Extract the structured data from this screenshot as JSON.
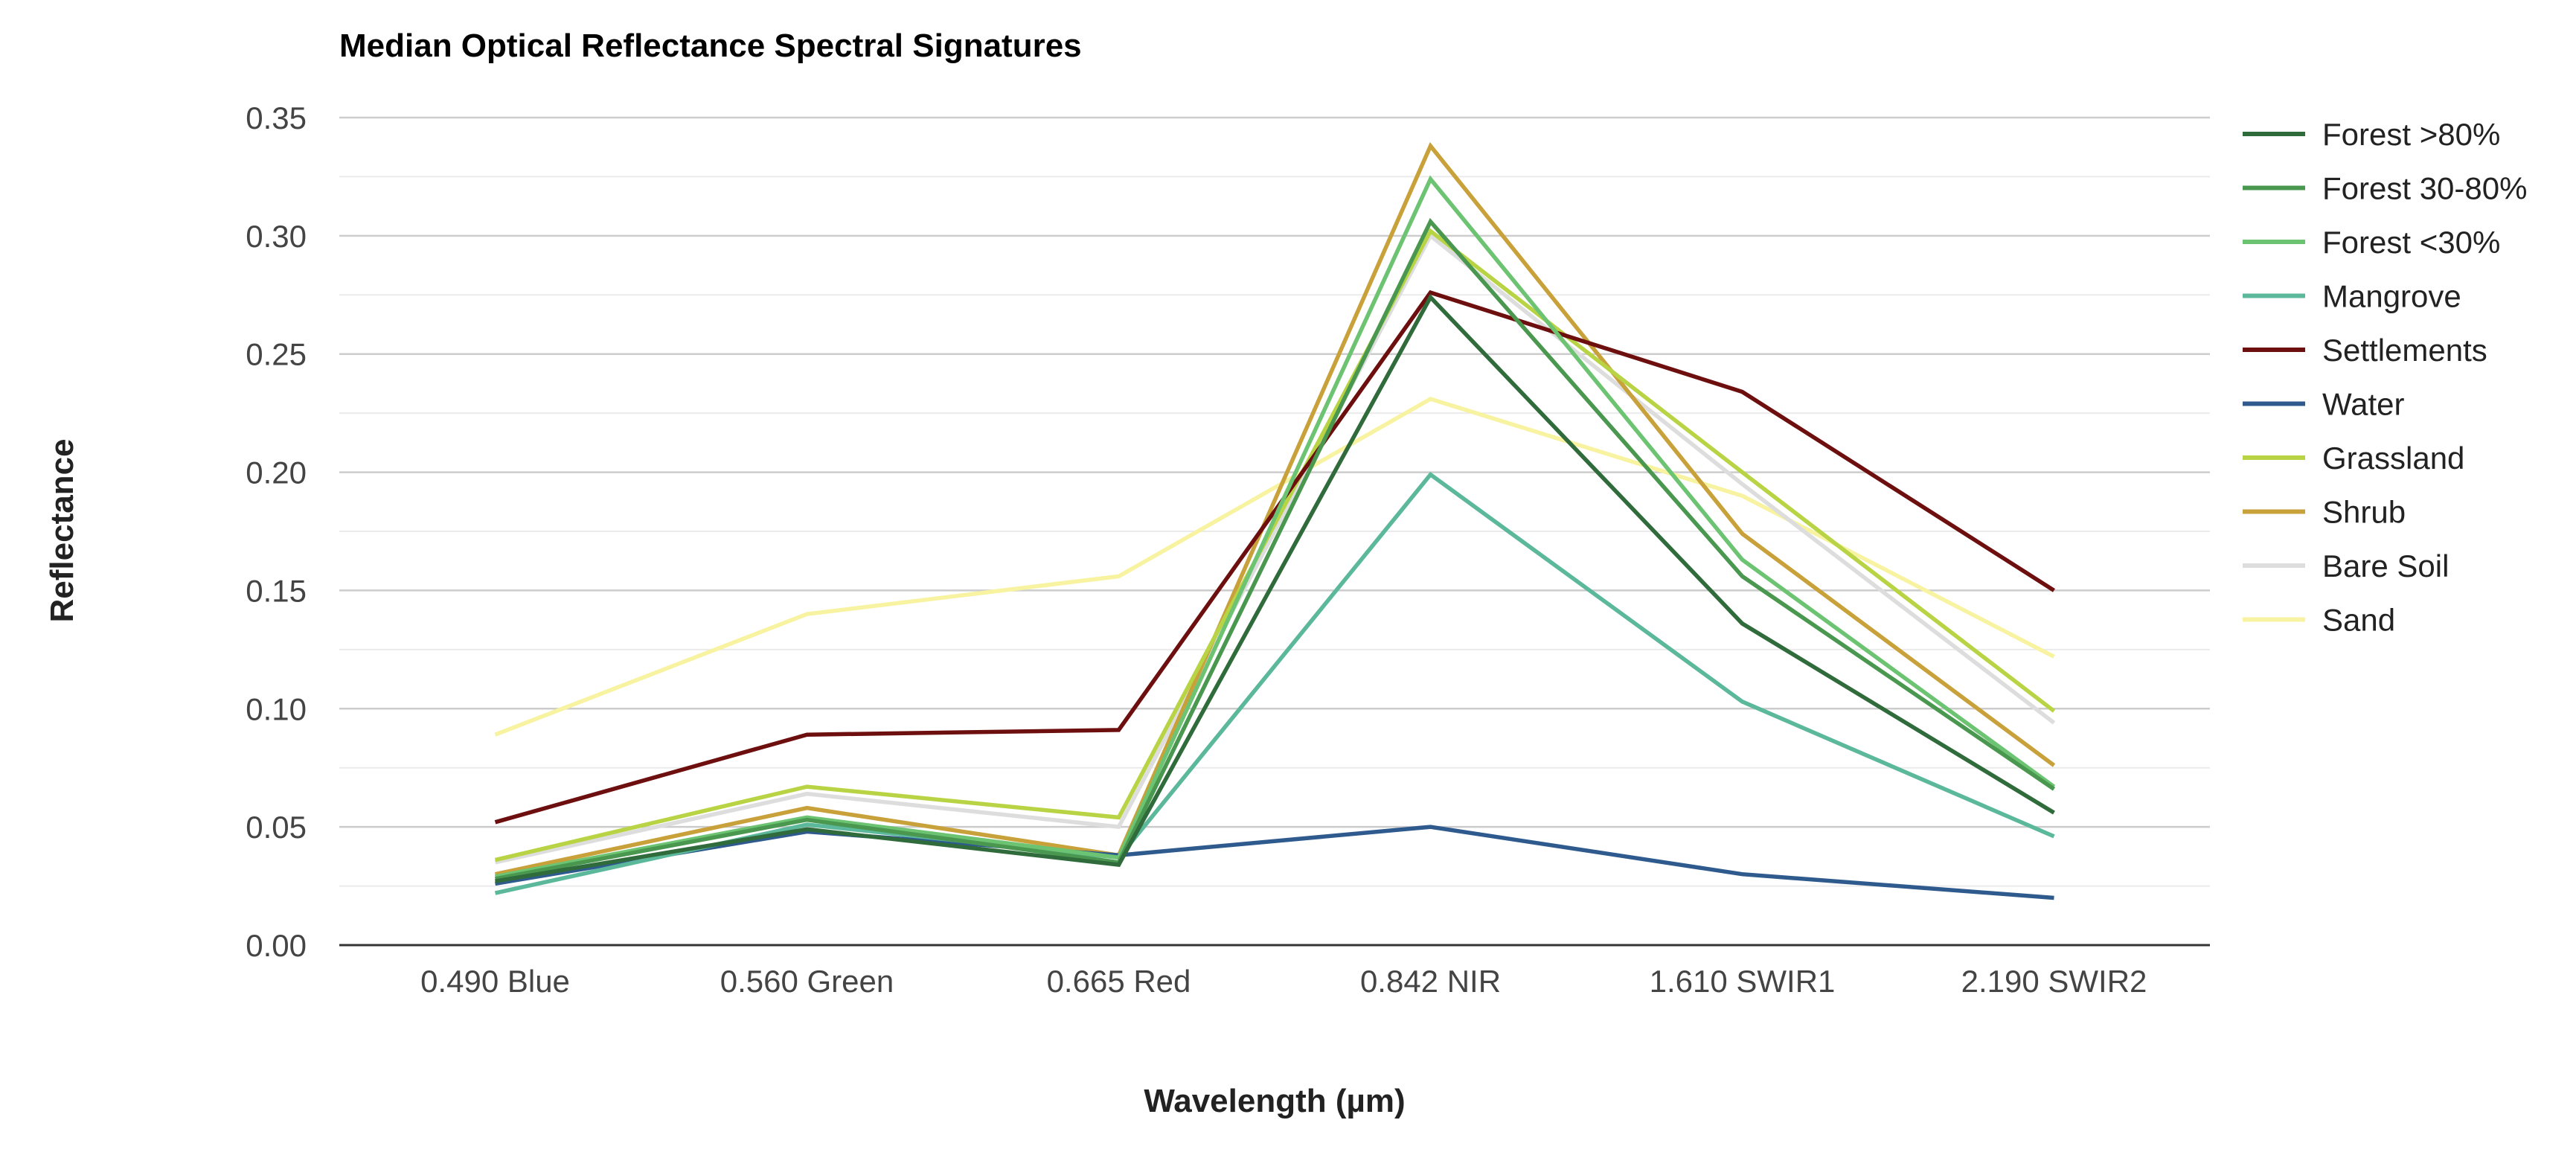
{
  "chart_data": {
    "type": "line",
    "title": "Median Optical Reflectance Spectral Signatures",
    "xlabel": "Wavelength (µm)",
    "ylabel": "Reflectance",
    "categories": [
      "0.490 Blue",
      "0.560 Green",
      "0.665 Red",
      "0.842 NIR",
      "1.610 SWIR1",
      "2.190 SWIR2"
    ],
    "ylim": [
      0,
      0.35
    ],
    "yticks": [
      "0.00",
      "0.05",
      "0.10",
      "0.15",
      "0.20",
      "0.25",
      "0.30",
      "0.35"
    ],
    "grid": true,
    "legend_position": "right",
    "series": [
      {
        "name": "Sand",
        "color": "#f7f3a0",
        "values": [
          0.089,
          0.14,
          0.156,
          0.231,
          0.19,
          0.122
        ]
      },
      {
        "name": "Bare Soil",
        "color": "#dddddd",
        "values": [
          0.035,
          0.064,
          0.05,
          0.3,
          0.195,
          0.094
        ]
      },
      {
        "name": "Shrub",
        "color": "#c9a13a",
        "values": [
          0.03,
          0.058,
          0.038,
          0.338,
          0.174,
          0.076
        ]
      },
      {
        "name": "Grassland",
        "color": "#b8d445",
        "values": [
          0.036,
          0.067,
          0.054,
          0.302,
          0.2,
          0.099
        ]
      },
      {
        "name": "Water",
        "color": "#2e5a8e",
        "values": [
          0.026,
          0.048,
          0.038,
          0.05,
          0.03,
          0.02
        ]
      },
      {
        "name": "Settlements",
        "color": "#6d0f0f",
        "values": [
          0.052,
          0.089,
          0.091,
          0.276,
          0.234,
          0.15
        ]
      },
      {
        "name": "Mangrove",
        "color": "#5bb89a",
        "values": [
          0.022,
          0.051,
          0.037,
          0.199,
          0.103,
          0.046
        ]
      },
      {
        "name": "Forest <30%",
        "color": "#6cc371",
        "values": [
          0.029,
          0.054,
          0.037,
          0.324,
          0.163,
          0.067
        ]
      },
      {
        "name": "Forest 30-80%",
        "color": "#4a9850",
        "values": [
          0.028,
          0.053,
          0.035,
          0.306,
          0.156,
          0.066
        ]
      },
      {
        "name": "Forest >80%",
        "color": "#2f6b3b",
        "values": [
          0.027,
          0.049,
          0.034,
          0.274,
          0.136,
          0.056
        ]
      }
    ],
    "legend_order": [
      "Forest >80%",
      "Forest 30-80%",
      "Forest <30%",
      "Mangrove",
      "Settlements",
      "Water",
      "Grassland",
      "Shrub",
      "Bare Soil",
      "Sand"
    ]
  }
}
